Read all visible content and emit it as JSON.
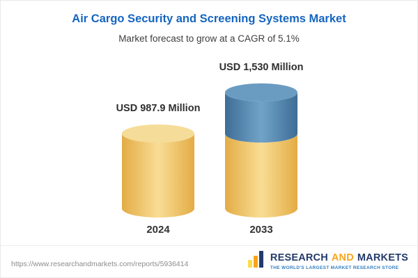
{
  "chart_data": {
    "type": "bar",
    "title": "Air Cargo Security and Screening Systems Market",
    "subtitle": "Market forecast to grow at a CAGR of 5.1%",
    "categories": [
      "2024",
      "2033"
    ],
    "values": [
      987.9,
      1530
    ],
    "value_labels": [
      "USD 987.9 Million",
      "USD 1,530 Million"
    ],
    "unit": "USD Million",
    "cagr_percent": 5.1,
    "stacked": true,
    "segments_2033": [
      987.9,
      542.1
    ],
    "ylim": [
      0,
      1530
    ],
    "grid": false,
    "legend": "none"
  },
  "colors": {
    "title_blue": "#1565C0",
    "yellow_edge": "#E3AC45",
    "yellow_mid": "#F9DD95",
    "yellow_top": "#F5DC98",
    "blue_edge": "#3E6D96",
    "blue_mid": "#71A3C8",
    "blue_top": "#6A9CC2"
  },
  "footer": {
    "url": "https://www.researchandmarkets.com/reports/5936414",
    "logo": {
      "research": "RESEARCH",
      "and": "AND",
      "markets": "MARKETS",
      "tagline": "THE WORLD'S LARGEST MARKET RESEARCH STORE"
    }
  }
}
